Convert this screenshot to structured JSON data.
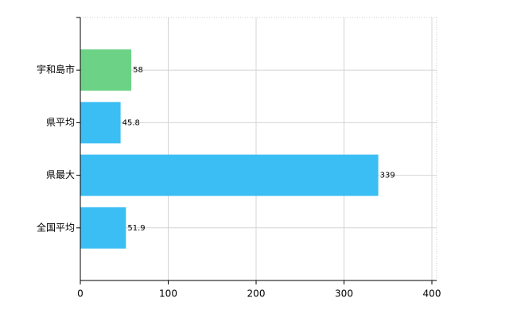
{
  "chart_data": {
    "type": "hbar",
    "categories": [
      "宇和島市",
      "県平均",
      "県最大",
      "全国平均"
    ],
    "values": [
      58,
      45.8,
      339,
      51.9
    ],
    "colors": [
      "#6cd386",
      "#3bbef3",
      "#3bbef3",
      "#3bbef3"
    ],
    "xlim": [
      0,
      400
    ],
    "xticks": [
      0,
      100,
      200,
      300,
      400
    ],
    "grid": true
  }
}
